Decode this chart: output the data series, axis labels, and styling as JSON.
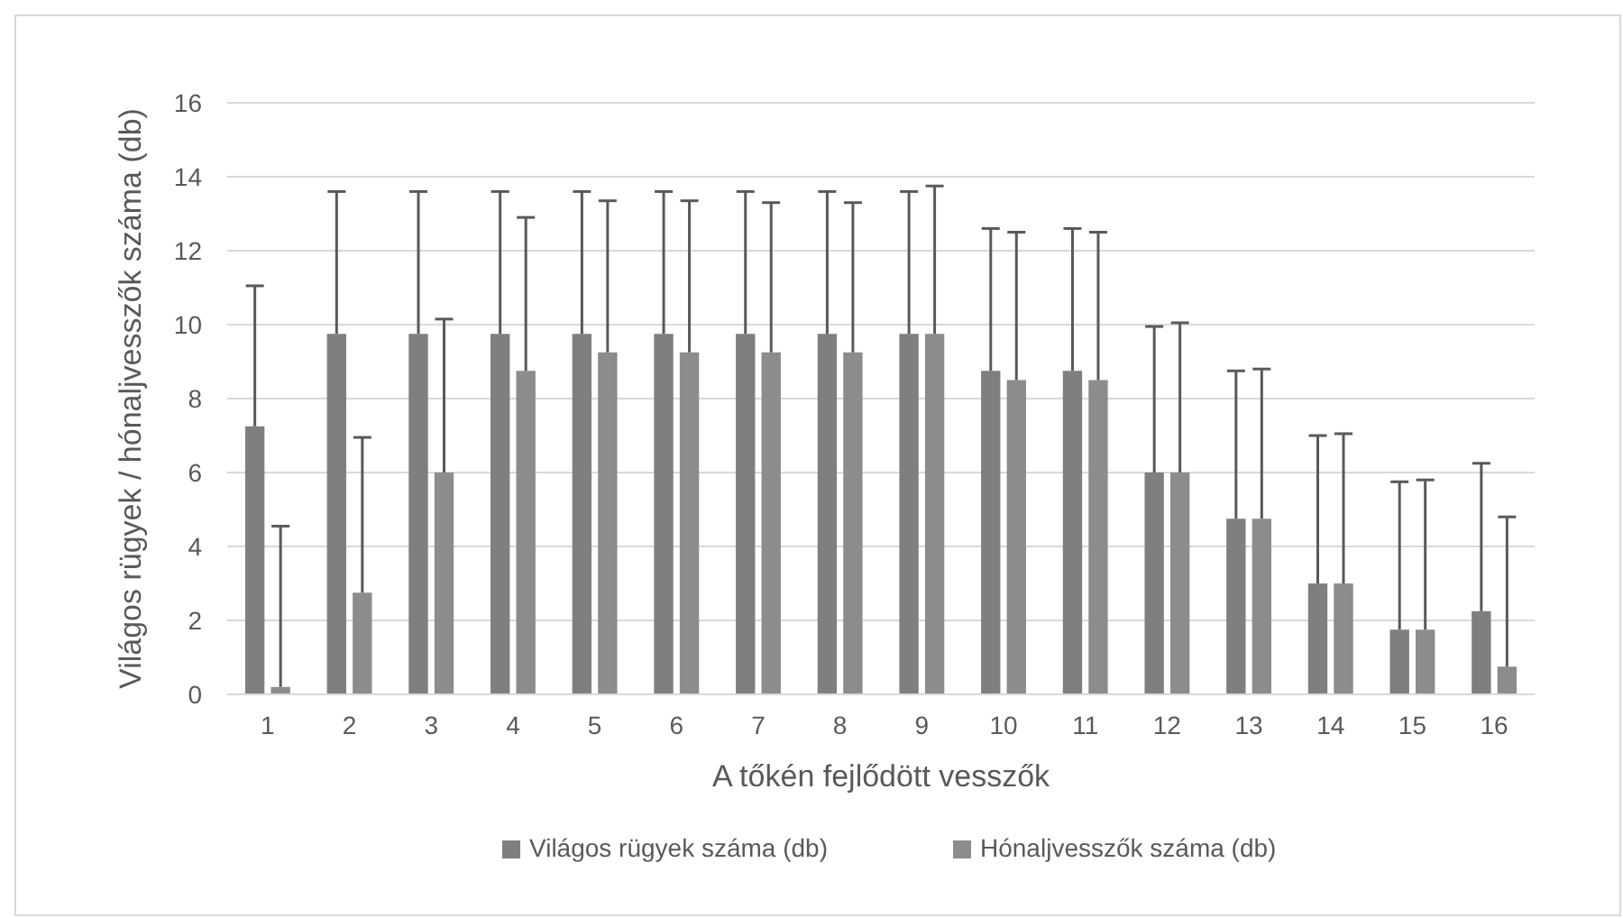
{
  "chart_data": {
    "type": "bar",
    "xlabel": "A tőkén fejlődött vesszők",
    "ylabel": "Világos rügyek / hónaljvesszők száma (db)",
    "categories": [
      "1",
      "2",
      "3",
      "4",
      "5",
      "6",
      "7",
      "8",
      "9",
      "10",
      "11",
      "12",
      "13",
      "14",
      "15",
      "16"
    ],
    "series": [
      {
        "name": "Világos rügyek száma (db)",
        "color": "#7f7f7f",
        "values": [
          7.25,
          9.75,
          9.75,
          9.75,
          9.75,
          9.75,
          9.75,
          9.75,
          9.75,
          8.75,
          8.75,
          6,
          4.75,
          3,
          1.75,
          2.25
        ],
        "errors": [
          [
            7.25,
            11.05
          ],
          [
            9.75,
            13.6
          ],
          [
            9.75,
            13.6
          ],
          [
            9.75,
            13.6
          ],
          [
            9.75,
            13.6
          ],
          [
            9.75,
            13.6
          ],
          [
            9.75,
            13.6
          ],
          [
            9.75,
            13.6
          ],
          [
            9.75,
            13.6
          ],
          [
            8.75,
            12.6
          ],
          [
            8.75,
            12.6
          ],
          [
            6,
            9.95
          ],
          [
            4.75,
            8.75
          ],
          [
            3,
            7
          ],
          [
            1.75,
            5.75
          ],
          [
            2.25,
            6.25
          ]
        ]
      },
      {
        "name": "Hónaljvesszők száma (db)",
        "color": "#8c8c8c",
        "values": [
          0.2,
          2.75,
          6,
          8.75,
          9.25,
          9.25,
          9.25,
          9.25,
          9.75,
          8.5,
          8.5,
          6,
          4.75,
          3,
          1.75,
          0.75
        ],
        "errors": [
          [
            0.2,
            4.55
          ],
          [
            2.75,
            6.95
          ],
          [
            6,
            10.15
          ],
          [
            8.75,
            12.9
          ],
          [
            9.25,
            13.35
          ],
          [
            9.25,
            13.35
          ],
          [
            9.25,
            13.3
          ],
          [
            9.25,
            13.3
          ],
          [
            9.75,
            13.75
          ],
          [
            8.5,
            12.5
          ],
          [
            8.5,
            12.5
          ],
          [
            6,
            10.05
          ],
          [
            4.75,
            8.8
          ],
          [
            3,
            7.05
          ],
          [
            1.75,
            5.8
          ],
          [
            0.75,
            4.8
          ]
        ]
      }
    ],
    "ylim": [
      0,
      16
    ],
    "yticks": [
      0,
      2,
      4,
      6,
      8,
      10,
      12,
      14,
      16
    ],
    "grid": "y",
    "legend": "bottom"
  }
}
